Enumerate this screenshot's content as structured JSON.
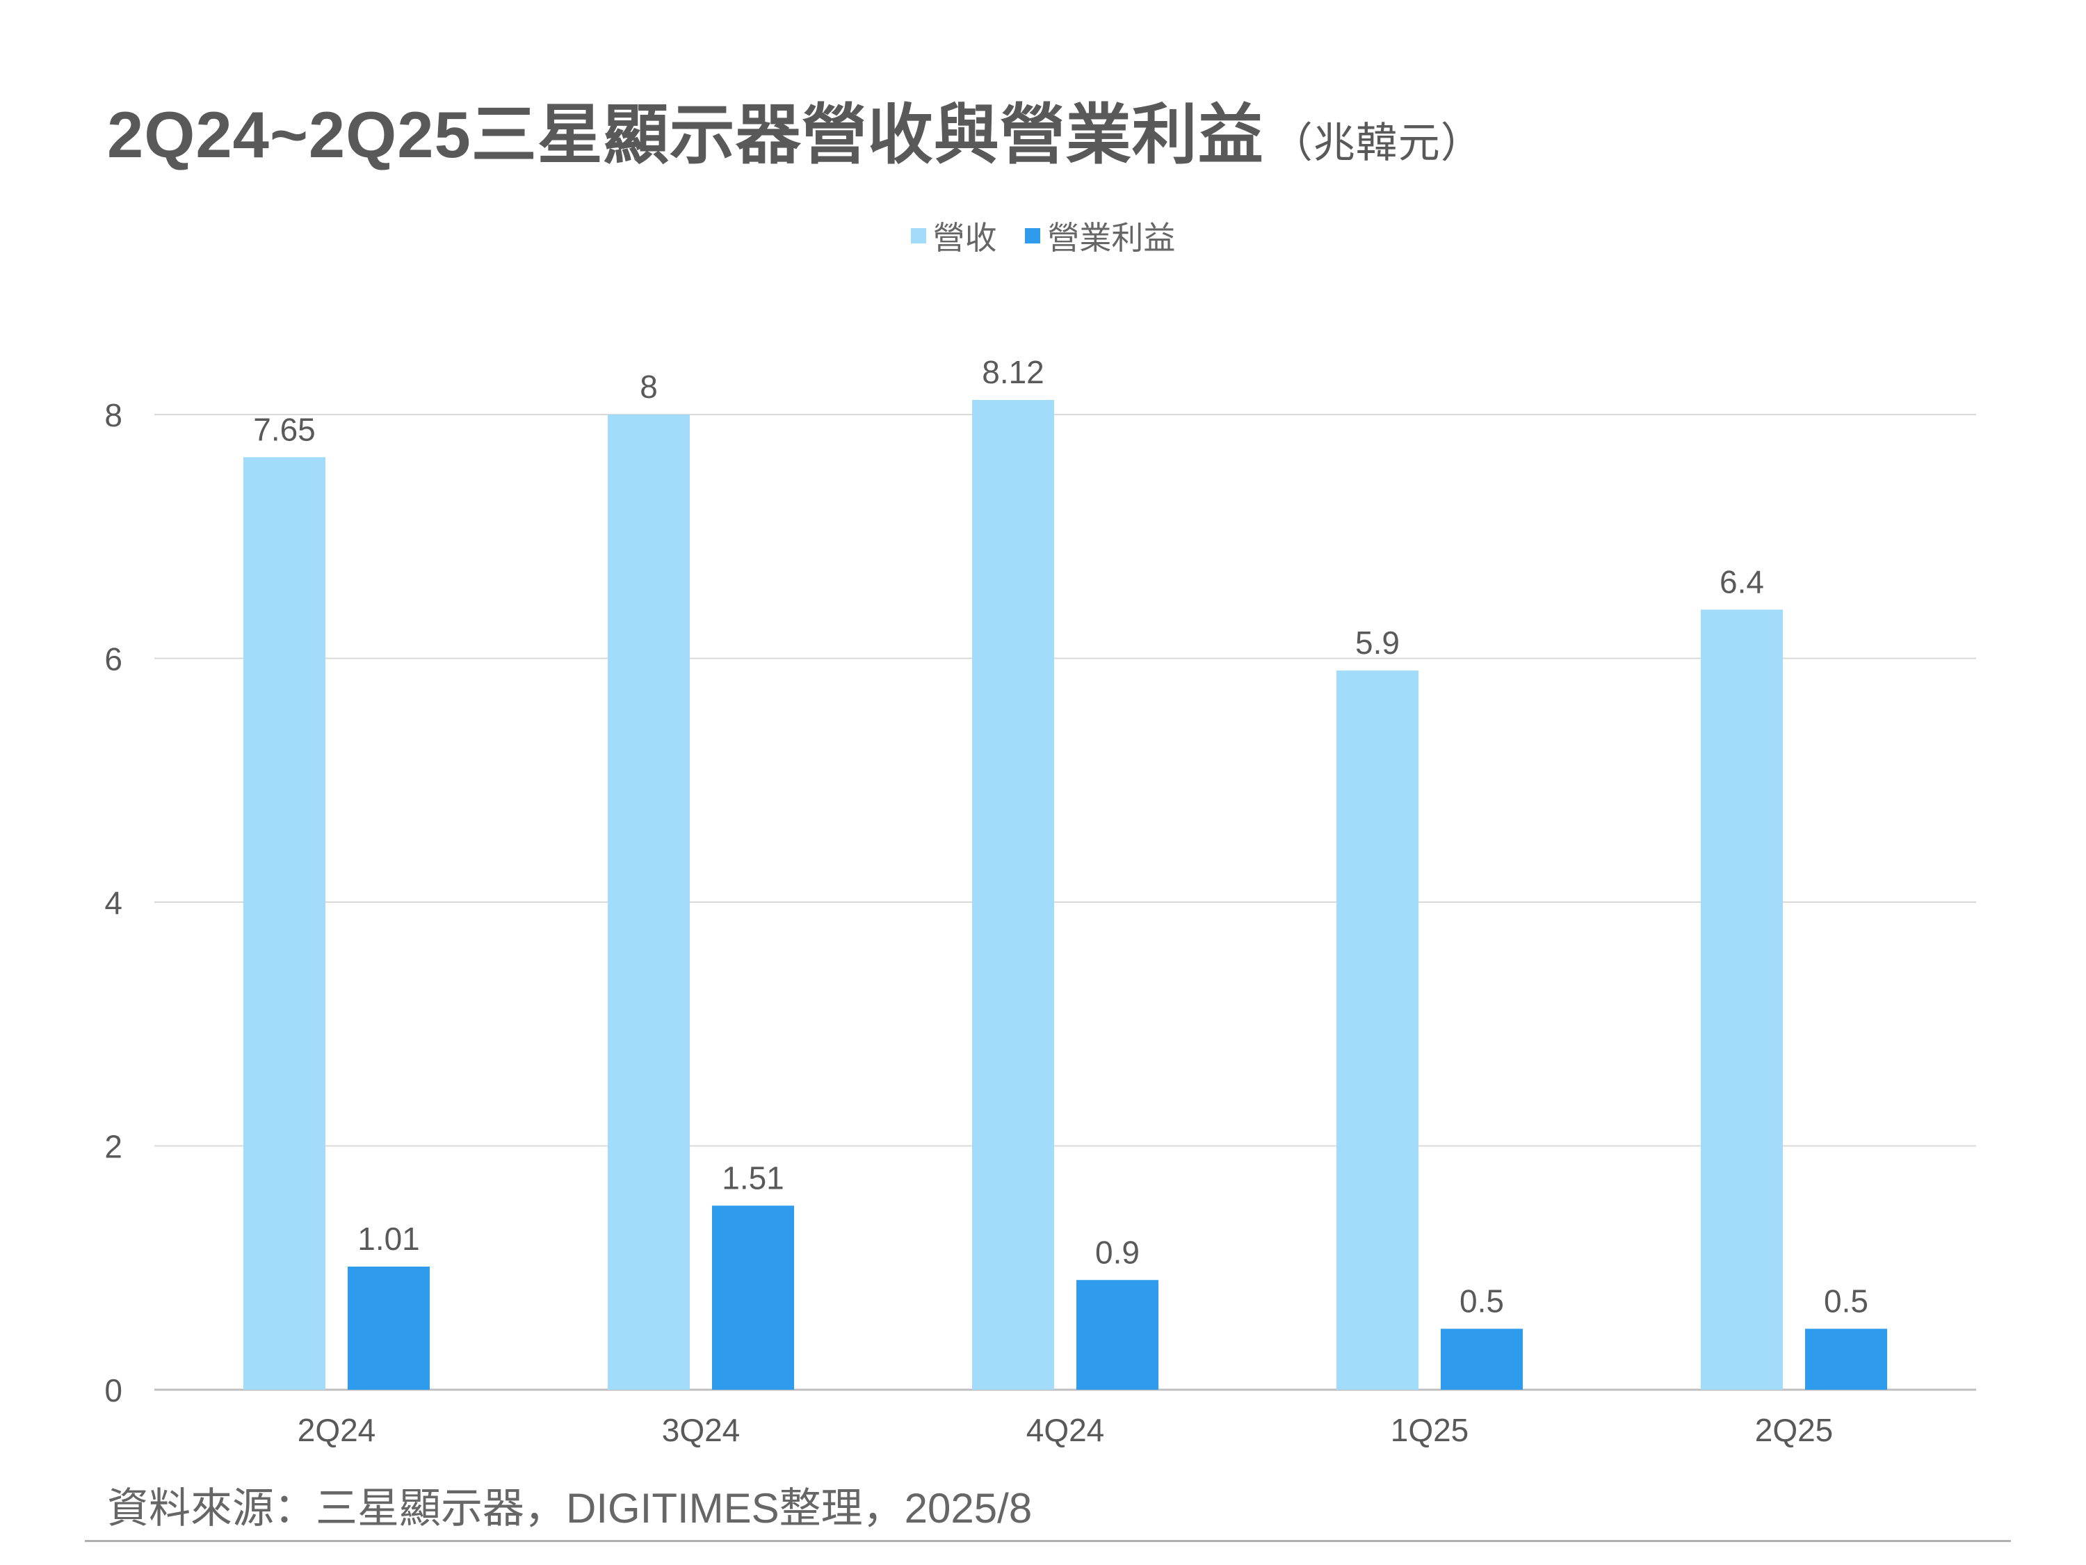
{
  "title": {
    "main": "2Q24~2Q25三星顯示器營收與營業利益",
    "unit": "（兆韓元）"
  },
  "source": "資料來源：三星顯示器，DIGITIMES整理，2025/8",
  "colors": {
    "revenue": "#a3dbfa",
    "operating_profit": "#2e9bec",
    "grid": "#d9d9d9",
    "axis_text": "#595959"
  },
  "chart_data": {
    "type": "bar",
    "categories": [
      "2Q24",
      "3Q24",
      "4Q24",
      "1Q25",
      "2Q25"
    ],
    "series": [
      {
        "name": "營收",
        "values": [
          7.65,
          8,
          8.12,
          5.9,
          6.4
        ],
        "labels": [
          "7.65",
          "8",
          "8.12",
          "5.9",
          "6.4"
        ]
      },
      {
        "name": "營業利益",
        "values": [
          1.01,
          1.51,
          0.9,
          0.5,
          0.5
        ],
        "labels": [
          "1.01",
          "1.51",
          "0.9",
          "0.5",
          "0.5"
        ]
      }
    ],
    "yticks": [
      0,
      2,
      4,
      6,
      8
    ],
    "ylim": [
      0,
      8
    ],
    "grid": true,
    "legend": "top-center"
  }
}
